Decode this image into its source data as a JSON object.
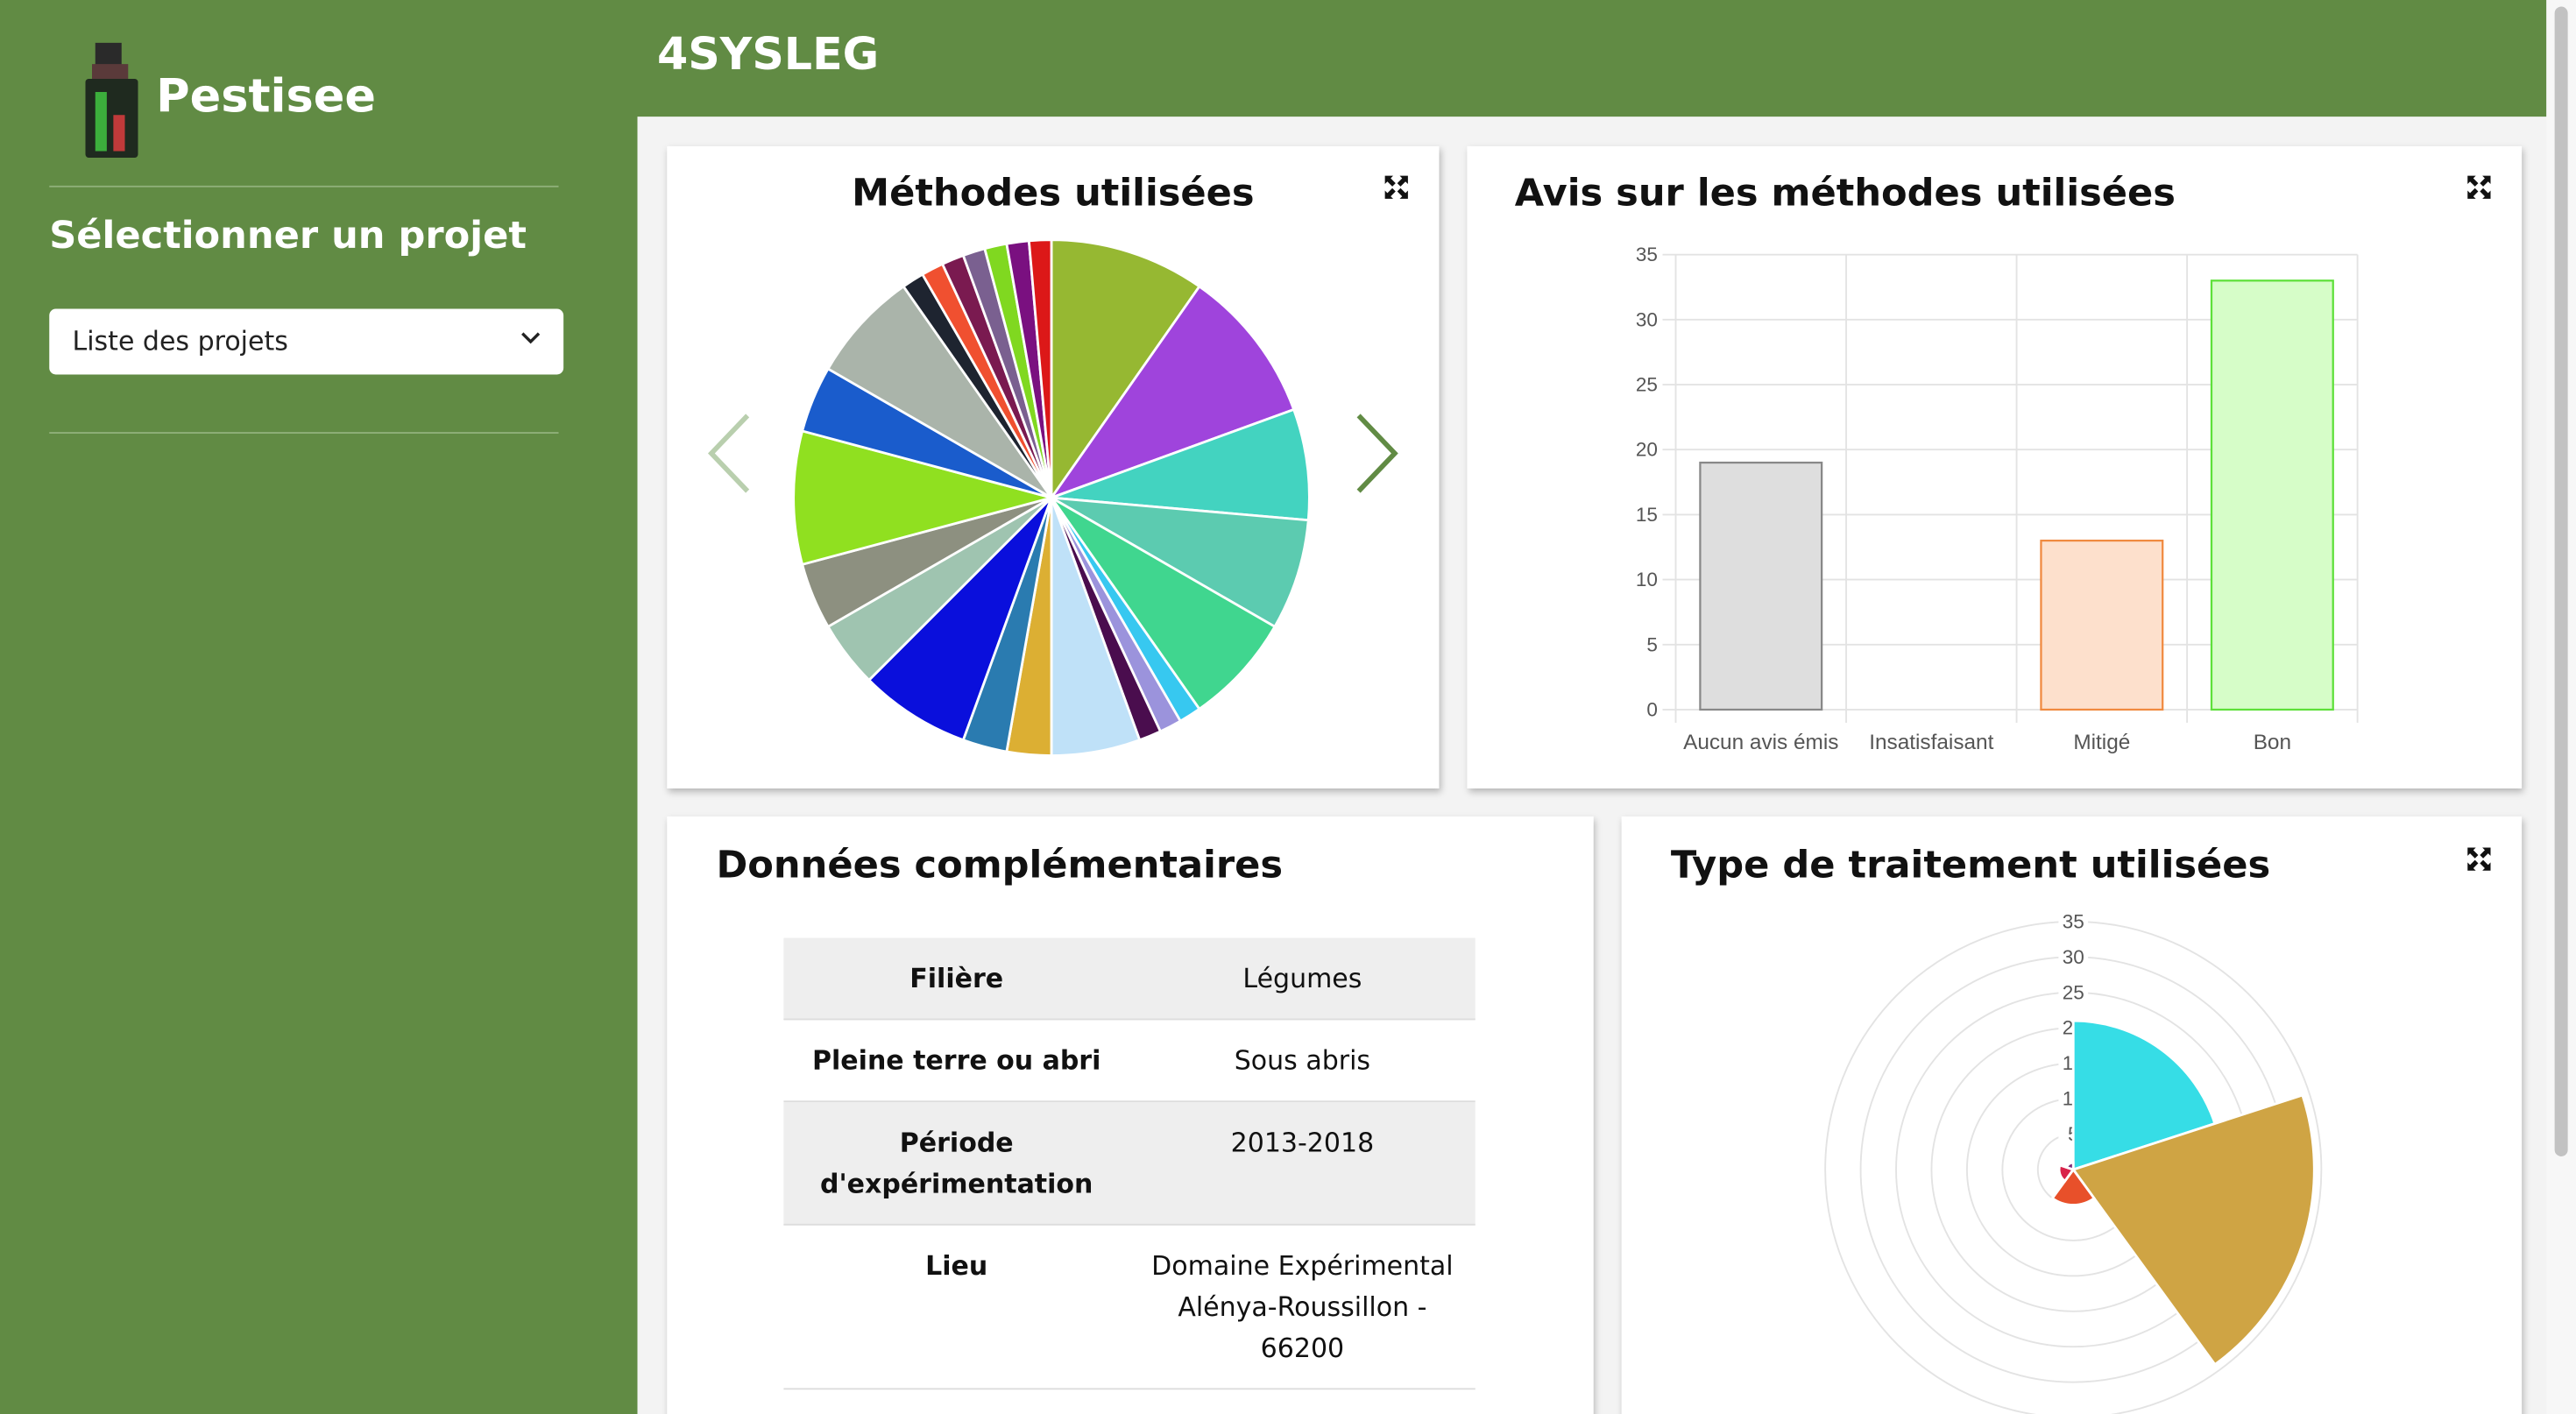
{
  "sidebar": {
    "brand": "Pestisee",
    "heading": "Sélectionner un projet",
    "select_placeholder": "Liste des projets"
  },
  "header": {
    "title": "4SYSLEG"
  },
  "panels": {
    "methods_pie": {
      "type": "pie",
      "title": "Méthodes utilisées",
      "values": [
        7,
        7,
        5,
        5,
        5,
        1,
        1,
        1,
        4,
        2,
        2,
        5,
        3,
        3,
        6,
        3,
        5,
        1,
        1,
        1,
        1,
        1,
        1,
        1
      ],
      "colors": [
        "#96b832",
        "#9f44dc",
        "#43d3c0",
        "#5ccbb0",
        "#40d68f",
        "#37c8f0",
        "#9b93dc",
        "#4a0d4e",
        "#bfe1f8",
        "#dcaf33",
        "#2a7bb0",
        "#0a0fdc",
        "#9fc4b0",
        "#8d9080",
        "#90e020",
        "#1a5ccc",
        "#aab4aa",
        "#1e2430",
        "#f05030",
        "#7a1a50",
        "#7a6090",
        "#80d820",
        "#7a1080",
        "#dc1818"
      ]
    },
    "opinions_bar": {
      "type": "bar",
      "title": "Avis sur les méthodes utilisées",
      "categories": [
        "Aucun avis émis",
        "Insatisfaisant",
        "Mitigé",
        "Bon"
      ],
      "values": [
        19,
        0,
        13,
        33
      ],
      "colors": [
        "#dedede",
        "#ffd0d0",
        "#fde0cc",
        "#d6fdc8"
      ],
      "border_colors": [
        "#888888",
        "#e04040",
        "#f08a40",
        "#5ee03a"
      ],
      "ylim": [
        0,
        35
      ],
      "yticks": [
        0,
        5,
        10,
        15,
        20,
        25,
        30,
        35
      ],
      "grid": true
    },
    "complementary": {
      "title": "Données complémentaires",
      "table": {
        "rows": [
          [
            "Filière",
            "Légumes"
          ],
          [
            "Pleine terre ou abri",
            "Sous abris"
          ],
          [
            "Période d'expérimentation",
            "2013-2018"
          ],
          [
            "Lieu",
            "Domaine Expérimental Alénya-Roussillon - 66200"
          ]
        ]
      }
    },
    "treatment_polar": {
      "type": "polarArea",
      "title": "Type de traitement utilisées",
      "values": [
        21,
        34,
        5,
        2,
        1
      ],
      "colors": [
        "#36dde6",
        "#cfa444",
        "#e8502a",
        "#d9234a",
        "#7a2a7a"
      ],
      "rlim": [
        0,
        35
      ],
      "rticks": [
        5,
        10,
        15,
        20,
        25,
        30,
        35
      ]
    }
  }
}
